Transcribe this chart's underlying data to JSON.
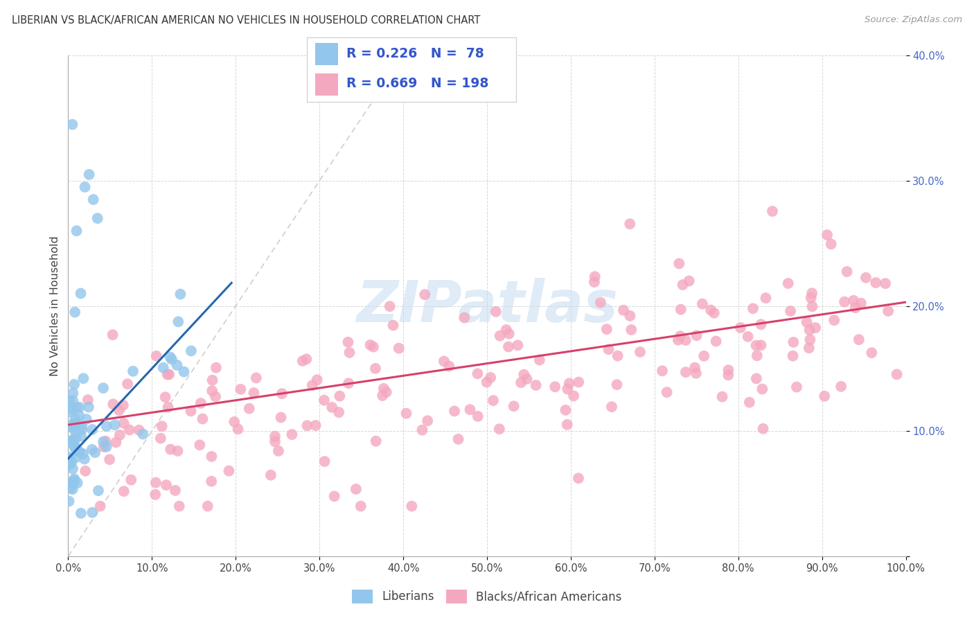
{
  "title": "LIBERIAN VS BLACK/AFRICAN AMERICAN NO VEHICLES IN HOUSEHOLD CORRELATION CHART",
  "source": "Source: ZipAtlas.com",
  "ylabel": "No Vehicles in Household",
  "xlim": [
    0,
    1.0
  ],
  "ylim": [
    0,
    0.4
  ],
  "xtick_vals": [
    0.0,
    0.1,
    0.2,
    0.3,
    0.4,
    0.5,
    0.6,
    0.7,
    0.8,
    0.9,
    1.0
  ],
  "ytick_vals": [
    0.0,
    0.1,
    0.2,
    0.3,
    0.4
  ],
  "xtick_labels": [
    "0.0%",
    "10.0%",
    "20.0%",
    "30.0%",
    "40.0%",
    "50.0%",
    "60.0%",
    "70.0%",
    "80.0%",
    "90.0%",
    "100.0%"
  ],
  "ytick_labels": [
    "",
    "10.0%",
    "20.0%",
    "30.0%",
    "40.0%"
  ],
  "liberian_R": 0.226,
  "liberian_N": 78,
  "black_R": 0.669,
  "black_N": 198,
  "liberian_color": "#93C6EC",
  "black_color": "#F4A8BF",
  "liberian_line_color": "#2467B0",
  "black_line_color": "#D6406A",
  "legend_text_color": "#3355CC",
  "axis_color": "#4466CC",
  "watermark_color": "#C5DCF0",
  "background_color": "#FFFFFF",
  "grid_color": "#CCCCCC",
  "title_color": "#333333",
  "source_color": "#999999"
}
